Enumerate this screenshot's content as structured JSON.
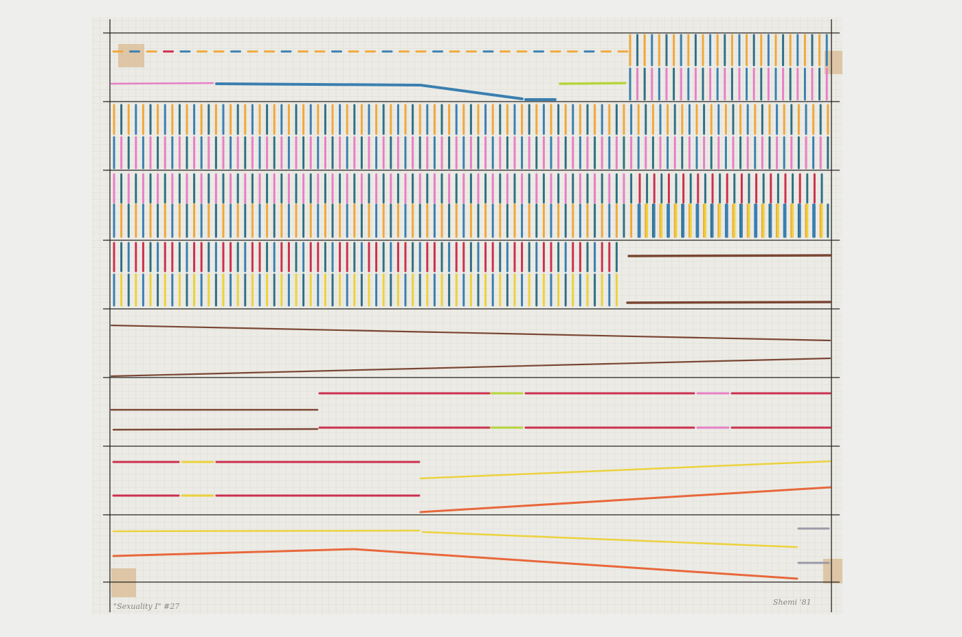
{
  "caption": {
    "title": "\"Sexuality I\" #27",
    "signature": "Shemi '81"
  }
}
